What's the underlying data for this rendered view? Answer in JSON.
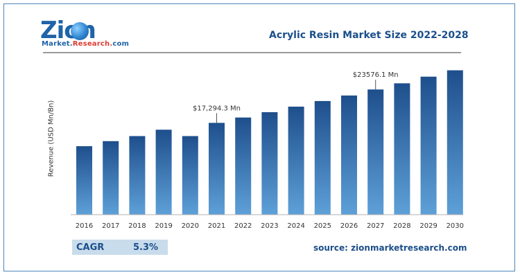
{
  "logo": {
    "word": "Zion",
    "sub_blue": "Market.",
    "sub_red": "Research.",
    "sub_tail": "com"
  },
  "chart_data": {
    "type": "bar",
    "title": "Acrylic Resin Market Size 2022-2028",
    "ylabel": "Revenue (USD Mn/Bn)",
    "xlabel": "",
    "categories": [
      "2016",
      "2017",
      "2018",
      "2019",
      "2020",
      "2021",
      "2022",
      "2023",
      "2024",
      "2025",
      "2026",
      "2027",
      "2028",
      "2029",
      "2030"
    ],
    "values": [
      12900,
      13850,
      14800,
      16000,
      14800,
      17294.3,
      18300,
      19300,
      20350,
      21400,
      22450,
      23576.1,
      24750,
      26000,
      27200
    ],
    "ylim": [
      0,
      30000
    ],
    "annotations": [
      {
        "index": 5,
        "text": "$17,294.3 Mn"
      },
      {
        "index": 11,
        "text": "$23576.1 Mn"
      }
    ],
    "colors": {
      "bar_top": "#1e4f8c",
      "bar_bottom": "#5ea0d8",
      "axis": "#b0b0b0"
    }
  },
  "cagr": {
    "label": "CAGR",
    "value": "5.3%"
  },
  "source": "source: zionmarketresearch.com"
}
